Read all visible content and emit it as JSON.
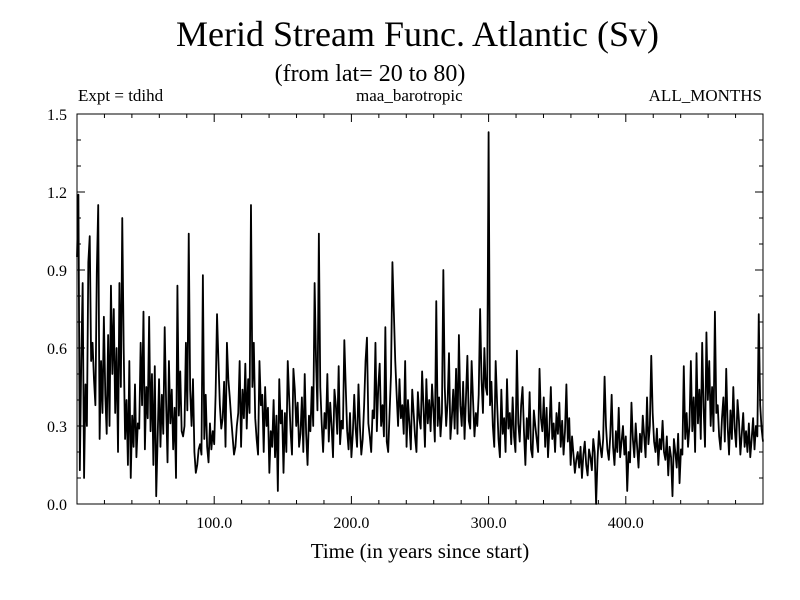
{
  "title": "Merid Stream Func. Atlantic (Sv)",
  "subtitle": "(from lat= 20 to 80)",
  "header": {
    "left": "Expt = tdihd",
    "center": "maa_barotropic",
    "right": "ALL_MONTHS"
  },
  "chart_data": {
    "type": "line",
    "title": "Merid Stream Func. Atlantic (Sv)",
    "subtitle": "(from lat= 20 to 80)",
    "xlabel": "Time (in years since start)",
    "ylabel": "",
    "xlim": [
      0,
      500
    ],
    "ylim": [
      0.0,
      1.5
    ],
    "x_ticks": [
      100,
      200,
      300,
      400
    ],
    "x_tick_labels": [
      "100.0",
      "200.0",
      "300.0",
      "400.0"
    ],
    "y_ticks": [
      0.0,
      0.3,
      0.6,
      0.9,
      1.2,
      1.5
    ],
    "y_tick_labels": [
      "0.0",
      "0.3",
      "0.6",
      "0.9",
      "1.2",
      "1.5"
    ],
    "grid": false,
    "legend": "none",
    "line_color": "#000000",
    "series": [
      {
        "values": [
          0.95,
          1.19,
          0.13,
          0.55,
          0.85,
          0.1,
          0.46,
          0.3,
          0.93,
          1.03,
          0.55,
          0.62,
          0.48,
          0.38,
          0.89,
          1.15,
          0.25,
          0.55,
          0.35,
          0.72,
          0.42,
          0.27,
          0.65,
          0.3,
          0.84,
          0.5,
          0.75,
          0.35,
          0.6,
          0.2,
          0.85,
          0.45,
          1.1,
          0.6,
          0.25,
          0.4,
          0.15,
          0.55,
          0.1,
          0.34,
          0.22,
          0.46,
          0.18,
          0.31,
          0.29,
          0.62,
          0.38,
          0.74,
          0.21,
          0.45,
          0.33,
          0.72,
          0.28,
          0.5,
          0.15,
          0.53,
          0.03,
          0.25,
          0.48,
          0.22,
          0.42,
          0.27,
          0.68,
          0.39,
          0.16,
          0.55,
          0.31,
          0.44,
          0.21,
          0.37,
          0.1,
          0.84,
          0.34,
          0.51,
          0.28,
          0.26,
          0.3,
          0.62,
          0.36,
          1.04,
          0.44,
          0.3,
          0.48,
          0.2,
          0.12,
          0.15,
          0.21,
          0.23,
          0.19,
          0.88,
          0.25,
          0.42,
          0.22,
          0.16,
          0.31,
          0.21,
          0.28,
          0.23,
          0.42,
          0.73,
          0.55,
          0.38,
          0.29,
          0.33,
          0.47,
          0.22,
          0.62,
          0.48,
          0.41,
          0.33,
          0.26,
          0.19,
          0.22,
          0.3,
          0.35,
          0.55,
          0.22,
          0.44,
          0.33,
          0.54,
          0.29,
          0.48,
          0.35,
          1.15,
          0.45,
          0.62,
          0.33,
          0.25,
          0.19,
          0.55,
          0.38,
          0.42,
          0.2,
          0.45,
          0.3,
          0.37,
          0.12,
          0.28,
          0.22,
          0.4,
          0.18,
          0.34,
          0.05,
          0.48,
          0.31,
          0.36,
          0.12,
          0.35,
          0.2,
          0.55,
          0.41,
          0.28,
          0.19,
          0.52,
          0.44,
          0.3,
          0.39,
          0.22,
          0.27,
          0.41,
          0.2,
          0.5,
          0.27,
          0.15,
          0.34,
          0.28,
          0.45,
          0.3,
          0.85,
          0.55,
          0.36,
          1.04,
          0.45,
          0.31,
          0.2,
          0.35,
          0.29,
          0.5,
          0.24,
          0.39,
          0.3,
          0.18,
          0.44,
          0.38,
          0.27,
          0.53,
          0.23,
          0.32,
          0.29,
          0.63,
          0.45,
          0.28,
          0.21,
          0.35,
          0.18,
          0.27,
          0.42,
          0.29,
          0.22,
          0.46,
          0.3,
          0.19,
          0.25,
          0.38,
          0.55,
          0.64,
          0.31,
          0.26,
          0.2,
          0.36,
          0.33,
          0.62,
          0.28,
          0.45,
          0.54,
          0.3,
          0.38,
          0.26,
          0.68,
          0.24,
          0.2,
          0.35,
          0.5,
          0.93,
          0.74,
          0.55,
          0.42,
          0.3,
          0.48,
          0.33,
          0.38,
          0.27,
          0.55,
          0.22,
          0.4,
          0.31,
          0.21,
          0.44,
          0.35,
          0.26,
          0.2,
          0.43,
          0.33,
          0.29,
          0.51,
          0.37,
          0.22,
          0.48,
          0.31,
          0.4,
          0.28,
          0.46,
          0.36,
          0.24,
          0.78,
          0.3,
          0.41,
          0.26,
          0.35,
          0.9,
          0.45,
          0.3,
          0.39,
          0.58,
          0.25,
          0.33,
          0.44,
          0.29,
          0.52,
          0.27,
          0.65,
          0.38,
          0.3,
          0.47,
          0.25,
          0.41,
          0.57,
          0.32,
          0.29,
          0.55,
          0.4,
          0.26,
          0.35,
          0.3,
          0.42,
          0.75,
          0.48,
          0.35,
          0.6,
          0.45,
          0.42,
          1.43,
          0.38,
          0.47,
          0.3,
          0.22,
          0.55,
          0.39,
          0.25,
          0.18,
          0.44,
          0.27,
          0.33,
          0.2,
          0.48,
          0.29,
          0.35,
          0.23,
          0.41,
          0.26,
          0.2,
          0.59,
          0.31,
          0.24,
          0.38,
          0.45,
          0.28,
          0.15,
          0.33,
          0.25,
          0.43,
          0.21,
          0.18,
          0.36,
          0.3,
          0.25,
          0.2,
          0.52,
          0.33,
          0.28,
          0.41,
          0.22,
          0.37,
          0.18,
          0.29,
          0.45,
          0.25,
          0.31,
          0.2,
          0.35,
          0.27,
          0.39,
          0.22,
          0.32,
          0.19,
          0.28,
          0.46,
          0.24,
          0.33,
          0.15,
          0.26,
          0.19,
          0.12,
          0.17,
          0.2,
          0.14,
          0.22,
          0.1,
          0.19,
          0.24,
          0.15,
          0.11,
          0.21,
          0.18,
          0.13,
          0.25,
          0.2,
          0.0,
          0.17,
          0.28,
          0.22,
          0.18,
          0.25,
          0.49,
          0.3,
          0.21,
          0.17,
          0.26,
          0.42,
          0.22,
          0.15,
          0.28,
          0.2,
          0.37,
          0.18,
          0.24,
          0.3,
          0.19,
          0.26,
          0.05,
          0.2,
          0.16,
          0.39,
          0.25,
          0.18,
          0.31,
          0.22,
          0.14,
          0.27,
          0.2,
          0.34,
          0.26,
          0.18,
          0.41,
          0.23,
          0.3,
          0.57,
          0.35,
          0.24,
          0.2,
          0.29,
          0.15,
          0.25,
          0.21,
          0.32,
          0.2,
          0.17,
          0.26,
          0.11,
          0.22,
          0.18,
          0.03,
          0.25,
          0.2,
          0.14,
          0.27,
          0.08,
          0.21,
          0.19,
          0.53,
          0.25,
          0.35,
          0.22,
          0.3,
          0.55,
          0.28,
          0.41,
          0.2,
          0.58,
          0.31,
          0.44,
          0.25,
          0.62,
          0.37,
          0.22,
          0.66,
          0.4,
          0.55,
          0.3,
          0.45,
          0.28,
          0.74,
          0.35,
          0.38,
          0.26,
          0.21,
          0.33,
          0.41,
          0.24,
          0.52,
          0.3,
          0.19,
          0.36,
          0.25,
          0.45,
          0.29,
          0.22,
          0.4,
          0.32,
          0.19,
          0.27,
          0.35,
          0.22,
          0.28,
          0.2,
          0.31,
          0.18,
          0.25,
          0.33,
          0.21,
          0.3,
          0.26,
          0.73,
          0.38,
          0.29,
          0.24
        ]
      }
    ]
  }
}
